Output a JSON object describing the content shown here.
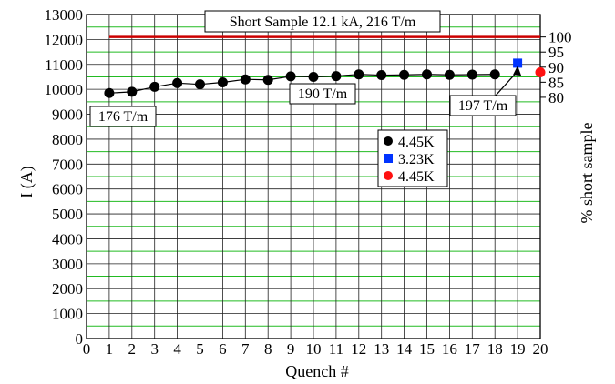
{
  "chart_data": {
    "type": "scatter",
    "xlabel": "Quench #",
    "ylabel": "I (A)",
    "y2label": "% short sample",
    "xlim": [
      0,
      20
    ],
    "ylim": [
      0,
      13000
    ],
    "x_ticks": [
      0,
      1,
      2,
      3,
      4,
      5,
      6,
      7,
      8,
      9,
      10,
      11,
      12,
      13,
      14,
      15,
      16,
      17,
      18,
      19,
      20
    ],
    "y_ticks": [
      0,
      1000,
      2000,
      3000,
      4000,
      5000,
      6000,
      7000,
      8000,
      9000,
      10000,
      11000,
      12000,
      13000
    ],
    "y2_ticks": [
      80,
      85,
      90,
      95,
      100
    ],
    "y2_reference_current": 12100,
    "grid": {
      "horizontal": true,
      "vertical": true,
      "minor_horizontal": true
    },
    "short_sample": {
      "label": "Short Sample 12.1 kA, 216 T/m",
      "value": 12100,
      "x_range": [
        1,
        20
      ],
      "color": "#cc0000"
    },
    "series": [
      {
        "name": "4.45K",
        "marker": "circle",
        "color": "#000000",
        "connected": true,
        "points": [
          [
            1,
            9850
          ],
          [
            2,
            9900
          ],
          [
            3,
            10100
          ],
          [
            4,
            10250
          ],
          [
            5,
            10200
          ],
          [
            6,
            10280
          ],
          [
            7,
            10400
          ],
          [
            8,
            10380
          ],
          [
            9,
            10520
          ],
          [
            10,
            10500
          ],
          [
            11,
            10530
          ],
          [
            12,
            10600
          ],
          [
            13,
            10570
          ],
          [
            14,
            10580
          ],
          [
            15,
            10600
          ],
          [
            16,
            10580
          ],
          [
            17,
            10590
          ],
          [
            18,
            10600
          ]
        ]
      },
      {
        "name": "3.23K",
        "marker": "square",
        "color": "#0033ff",
        "connected": false,
        "points": [
          [
            19,
            11050
          ]
        ]
      },
      {
        "name": "4.45K",
        "marker": "circle",
        "color": "#ff1111",
        "connected": false,
        "points": [
          [
            20,
            10680
          ]
        ]
      }
    ],
    "annotations": [
      {
        "text": "176 T/m"
      },
      {
        "text": "190 T/m"
      },
      {
        "text": "197 T/m",
        "arrow_to": [
          19,
          10950
        ]
      }
    ]
  }
}
